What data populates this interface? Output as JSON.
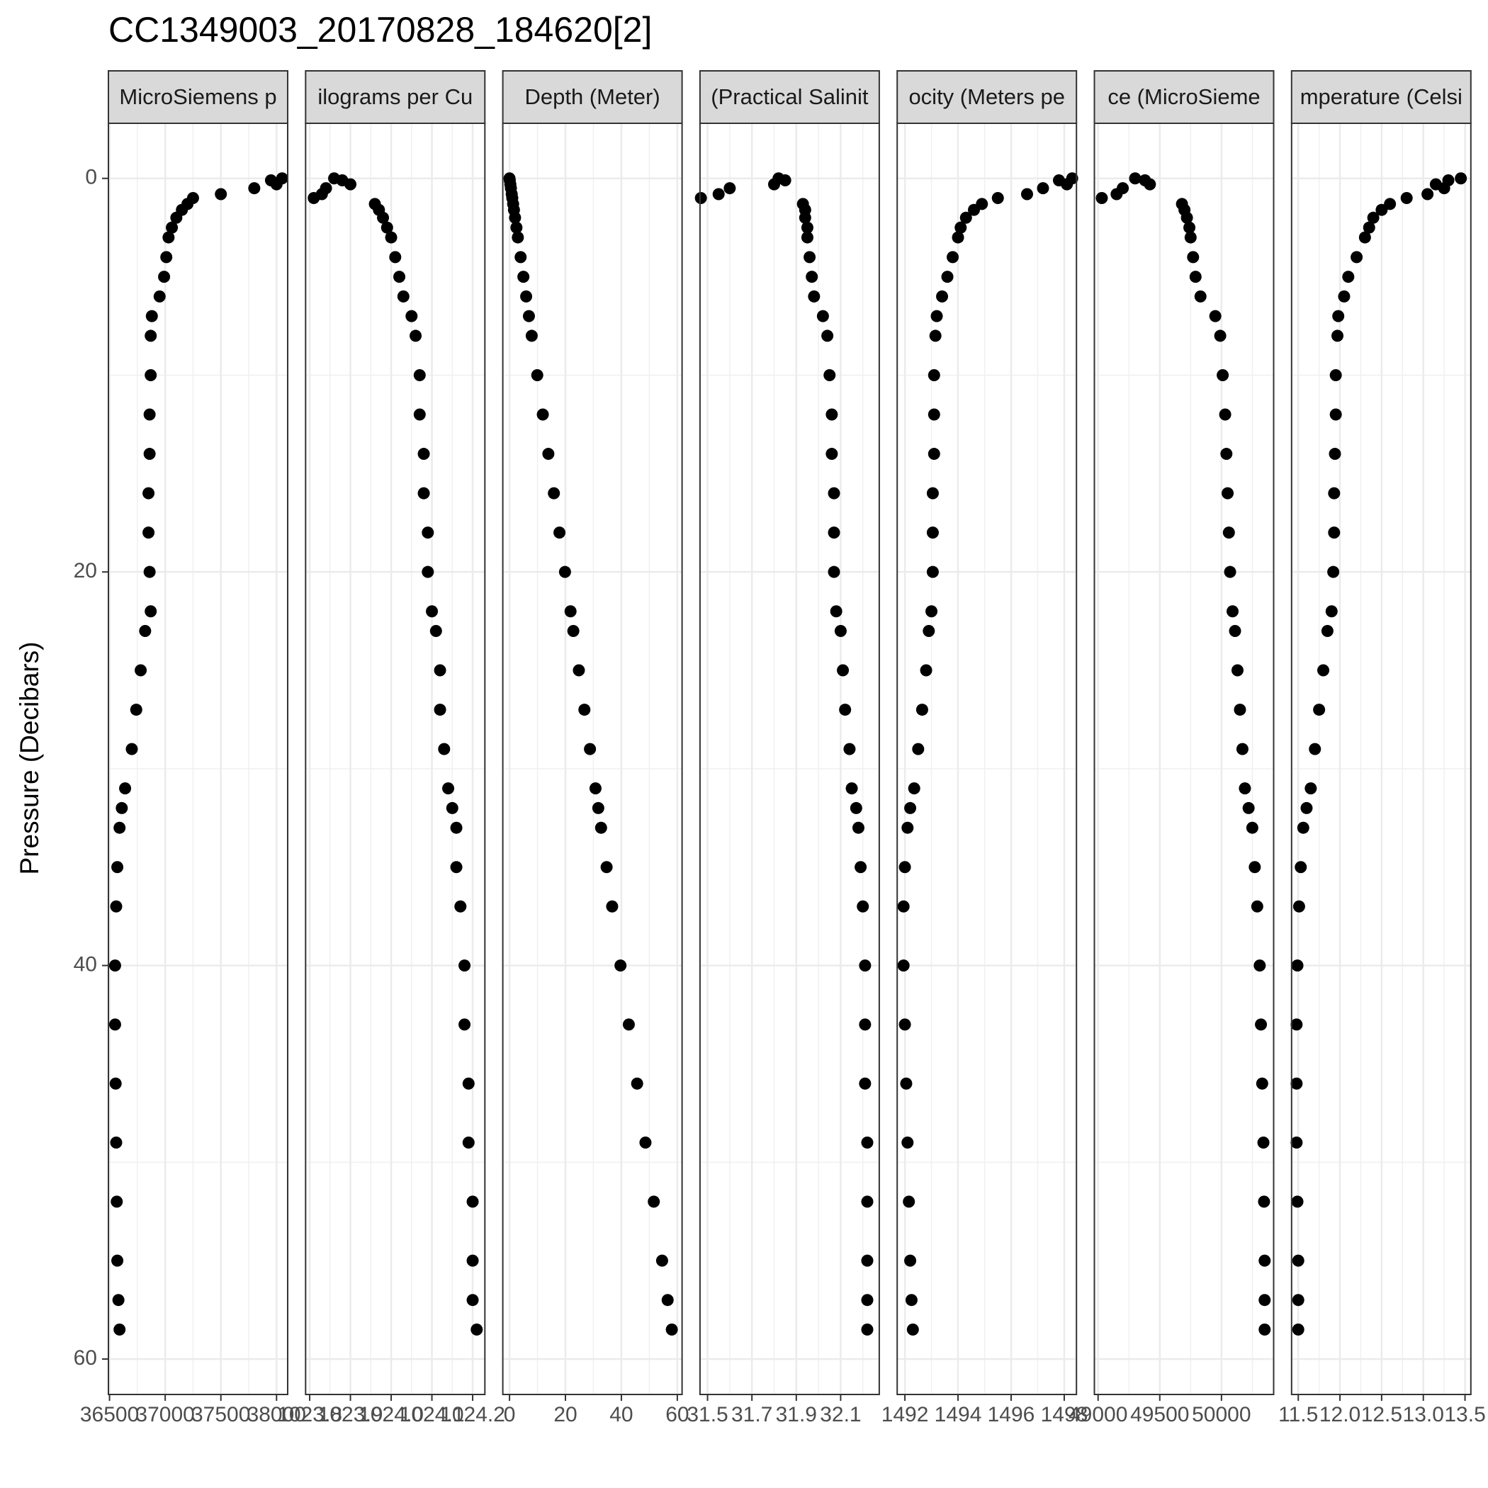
{
  "chart_data": {
    "type": "scatter",
    "title": "CC1349003_20170828_184620[2]",
    "ylabel": "Pressure (Decibars)",
    "y": [
      0,
      0.1,
      0.3,
      0.5,
      0.8,
      1.0,
      1.3,
      1.6,
      2.0,
      2.5,
      3.0,
      4,
      5,
      6,
      7,
      8,
      10,
      12,
      14,
      16,
      18,
      20,
      22,
      23,
      25,
      27,
      29,
      31,
      32,
      33,
      35,
      37,
      40,
      43,
      46,
      49,
      52,
      55,
      57,
      58.5
    ],
    "ylim": [
      -2.8,
      61.8
    ],
    "y_reversed": true,
    "yticks": [
      0,
      20,
      40,
      60
    ],
    "grid": true,
    "color": "#000000",
    "panels": [
      {
        "strip": "MicroSiemens p",
        "xlim": [
          36490,
          38100
        ],
        "xticks": [
          36500,
          37000,
          37500,
          38000
        ],
        "values": [
          38050,
          37950,
          38000,
          37800,
          37500,
          37250,
          37200,
          37150,
          37100,
          37060,
          37030,
          37010,
          36990,
          36950,
          36880,
          36870,
          36870,
          36860,
          36860,
          36850,
          36850,
          36860,
          36870,
          36820,
          36780,
          36740,
          36700,
          36640,
          36610,
          36590,
          36570,
          36560,
          36550,
          36550,
          36555,
          36560,
          36565,
          36570,
          36580,
          36590
        ]
      },
      {
        "strip": "ilograms per Cu",
        "xlim": [
          1023.79,
          1024.23
        ],
        "xticks": [
          1023.8,
          1023.9,
          {
            "value": 1024,
            "label": "1024.0"
          },
          1024.1,
          1024.2
        ],
        "values": [
          1023.86,
          1023.88,
          1023.9,
          1023.84,
          1023.83,
          1023.81,
          1023.96,
          1023.97,
          1023.98,
          1023.99,
          1024.0,
          1024.01,
          1024.02,
          1024.03,
          1024.05,
          1024.06,
          1024.07,
          1024.07,
          1024.08,
          1024.08,
          1024.09,
          1024.09,
          1024.1,
          1024.11,
          1024.12,
          1024.12,
          1024.13,
          1024.14,
          1024.15,
          1024.16,
          1024.16,
          1024.17,
          1024.18,
          1024.18,
          1024.19,
          1024.19,
          1024.2,
          1024.2,
          1024.2,
          1024.21
        ]
      },
      {
        "strip": "Depth (Meter)",
        "xlim": [
          -2.4,
          61.7
        ],
        "xticks": [
          0,
          20,
          40,
          60
        ],
        "values": [
          0,
          0.1,
          0.3,
          0.5,
          0.79,
          0.99,
          1.29,
          1.59,
          1.98,
          2.48,
          2.98,
          3.97,
          4.96,
          5.95,
          6.94,
          7.94,
          9.92,
          11.9,
          13.89,
          15.87,
          17.86,
          19.84,
          21.82,
          22.82,
          24.8,
          26.78,
          28.77,
          30.75,
          31.74,
          32.74,
          34.72,
          36.7,
          39.68,
          42.66,
          45.63,
          48.61,
          51.59,
          54.56,
          56.54,
          58.03
        ]
      },
      {
        "strip": "(Practical Salinit",
        "xlim": [
          31.466,
          32.274
        ],
        "xticks": [
          31.5,
          31.7,
          31.9,
          32.1
        ],
        "values": [
          31.82,
          31.85,
          31.8,
          31.6,
          31.55,
          31.47,
          31.93,
          31.94,
          31.94,
          31.95,
          31.95,
          31.96,
          31.97,
          31.98,
          32.02,
          32.04,
          32.05,
          32.06,
          32.06,
          32.07,
          32.07,
          32.07,
          32.08,
          32.1,
          32.11,
          32.12,
          32.14,
          32.15,
          32.17,
          32.18,
          32.19,
          32.2,
          32.21,
          32.21,
          32.21,
          32.22,
          32.22,
          32.22,
          32.22,
          32.22
        ]
      },
      {
        "strip": "ocity (Meters pe",
        "xlim": [
          1491.71,
          1498.46
        ],
        "xticks": [
          1492,
          1494,
          1496,
          1498
        ],
        "values": [
          1498.3,
          1497.8,
          1498.1,
          1497.2,
          1496.6,
          1495.5,
          1494.9,
          1494.6,
          1494.3,
          1494.1,
          1494.0,
          1493.8,
          1493.6,
          1493.4,
          1493.2,
          1493.15,
          1493.1,
          1493.1,
          1493.1,
          1493.05,
          1493.05,
          1493.05,
          1493.0,
          1492.9,
          1492.8,
          1492.65,
          1492.5,
          1492.35,
          1492.2,
          1492.1,
          1492.0,
          1491.95,
          1491.95,
          1492.0,
          1492.05,
          1492.1,
          1492.15,
          1492.2,
          1492.25,
          1492.3
        ]
      },
      {
        "strip": "ce (MicroSieme",
        "xlim": [
          48970,
          50423
        ],
        "xticks": [
          49000,
          49500,
          50000
        ],
        "values": [
          49300,
          49380,
          49420,
          49200,
          49150,
          49030,
          49680,
          49700,
          49720,
          49740,
          49750,
          49770,
          49790,
          49830,
          49950,
          49990,
          50010,
          50030,
          50040,
          50050,
          50060,
          50070,
          50090,
          50110,
          50130,
          50150,
          50170,
          50190,
          50220,
          50250,
          50270,
          50290,
          50310,
          50320,
          50330,
          50340,
          50345,
          50350,
          50350,
          50350
        ]
      },
      {
        "strip": "mperature (Celsi",
        "xlim": [
          11.42,
          13.57
        ],
        "xticks": [
          11.5,
          {
            "value": 12,
            "label": "12.0"
          },
          12.5,
          {
            "value": 13,
            "label": "13.0"
          },
          13.5
        ],
        "values": [
          13.45,
          13.3,
          13.15,
          13.25,
          13.05,
          12.8,
          12.6,
          12.5,
          12.4,
          12.35,
          12.3,
          12.2,
          12.1,
          12.05,
          11.98,
          11.97,
          11.95,
          11.95,
          11.94,
          11.93,
          11.93,
          11.92,
          11.9,
          11.85,
          11.8,
          11.75,
          11.7,
          11.65,
          11.6,
          11.56,
          11.53,
          11.51,
          11.49,
          11.48,
          11.48,
          11.48,
          11.49,
          11.5,
          11.5,
          11.5
        ]
      }
    ]
  }
}
